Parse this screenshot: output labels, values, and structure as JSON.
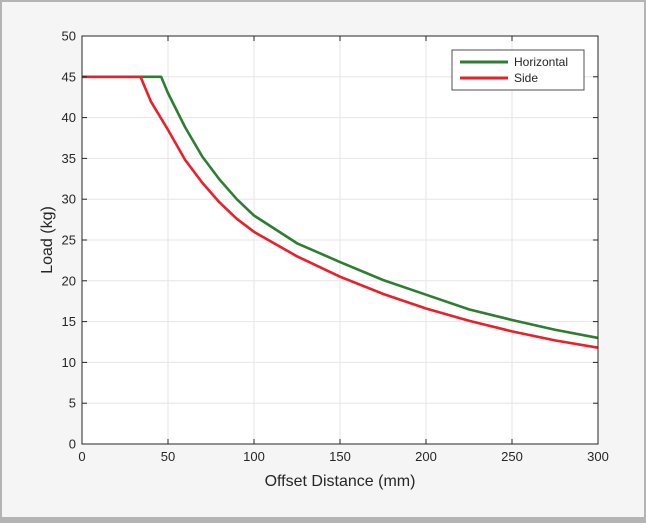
{
  "chart_data": {
    "type": "line",
    "title": "",
    "xlabel": "Offset Distance (mm)",
    "ylabel": "Load (kg)",
    "xlim": [
      0,
      300
    ],
    "ylim": [
      0,
      50
    ],
    "xticks": [
      0,
      50,
      100,
      150,
      200,
      250,
      300
    ],
    "yticks": [
      0,
      5,
      10,
      15,
      20,
      25,
      30,
      35,
      40,
      45,
      50
    ],
    "grid": true,
    "legend_position": "top-right",
    "series": [
      {
        "name": "Horizontal",
        "color": "#2e7d32",
        "x": [
          0,
          46,
          50,
          60,
          70,
          80,
          90,
          100,
          125,
          150,
          175,
          200,
          225,
          250,
          275,
          300
        ],
        "y": [
          45,
          45,
          43.0,
          38.8,
          35.2,
          32.4,
          30.0,
          28.0,
          24.6,
          22.3,
          20.1,
          18.3,
          16.5,
          15.2,
          14.0,
          13.0
        ]
      },
      {
        "name": "Side",
        "color": "#e8202a",
        "x": [
          0,
          34,
          40,
          50,
          60,
          70,
          80,
          90,
          100,
          125,
          150,
          175,
          200,
          225,
          250,
          275,
          300
        ],
        "y": [
          45,
          45,
          42.0,
          38.5,
          34.8,
          32.0,
          29.6,
          27.6,
          26.0,
          23.0,
          20.5,
          18.4,
          16.6,
          15.1,
          13.8,
          12.7,
          11.8
        ]
      }
    ]
  }
}
